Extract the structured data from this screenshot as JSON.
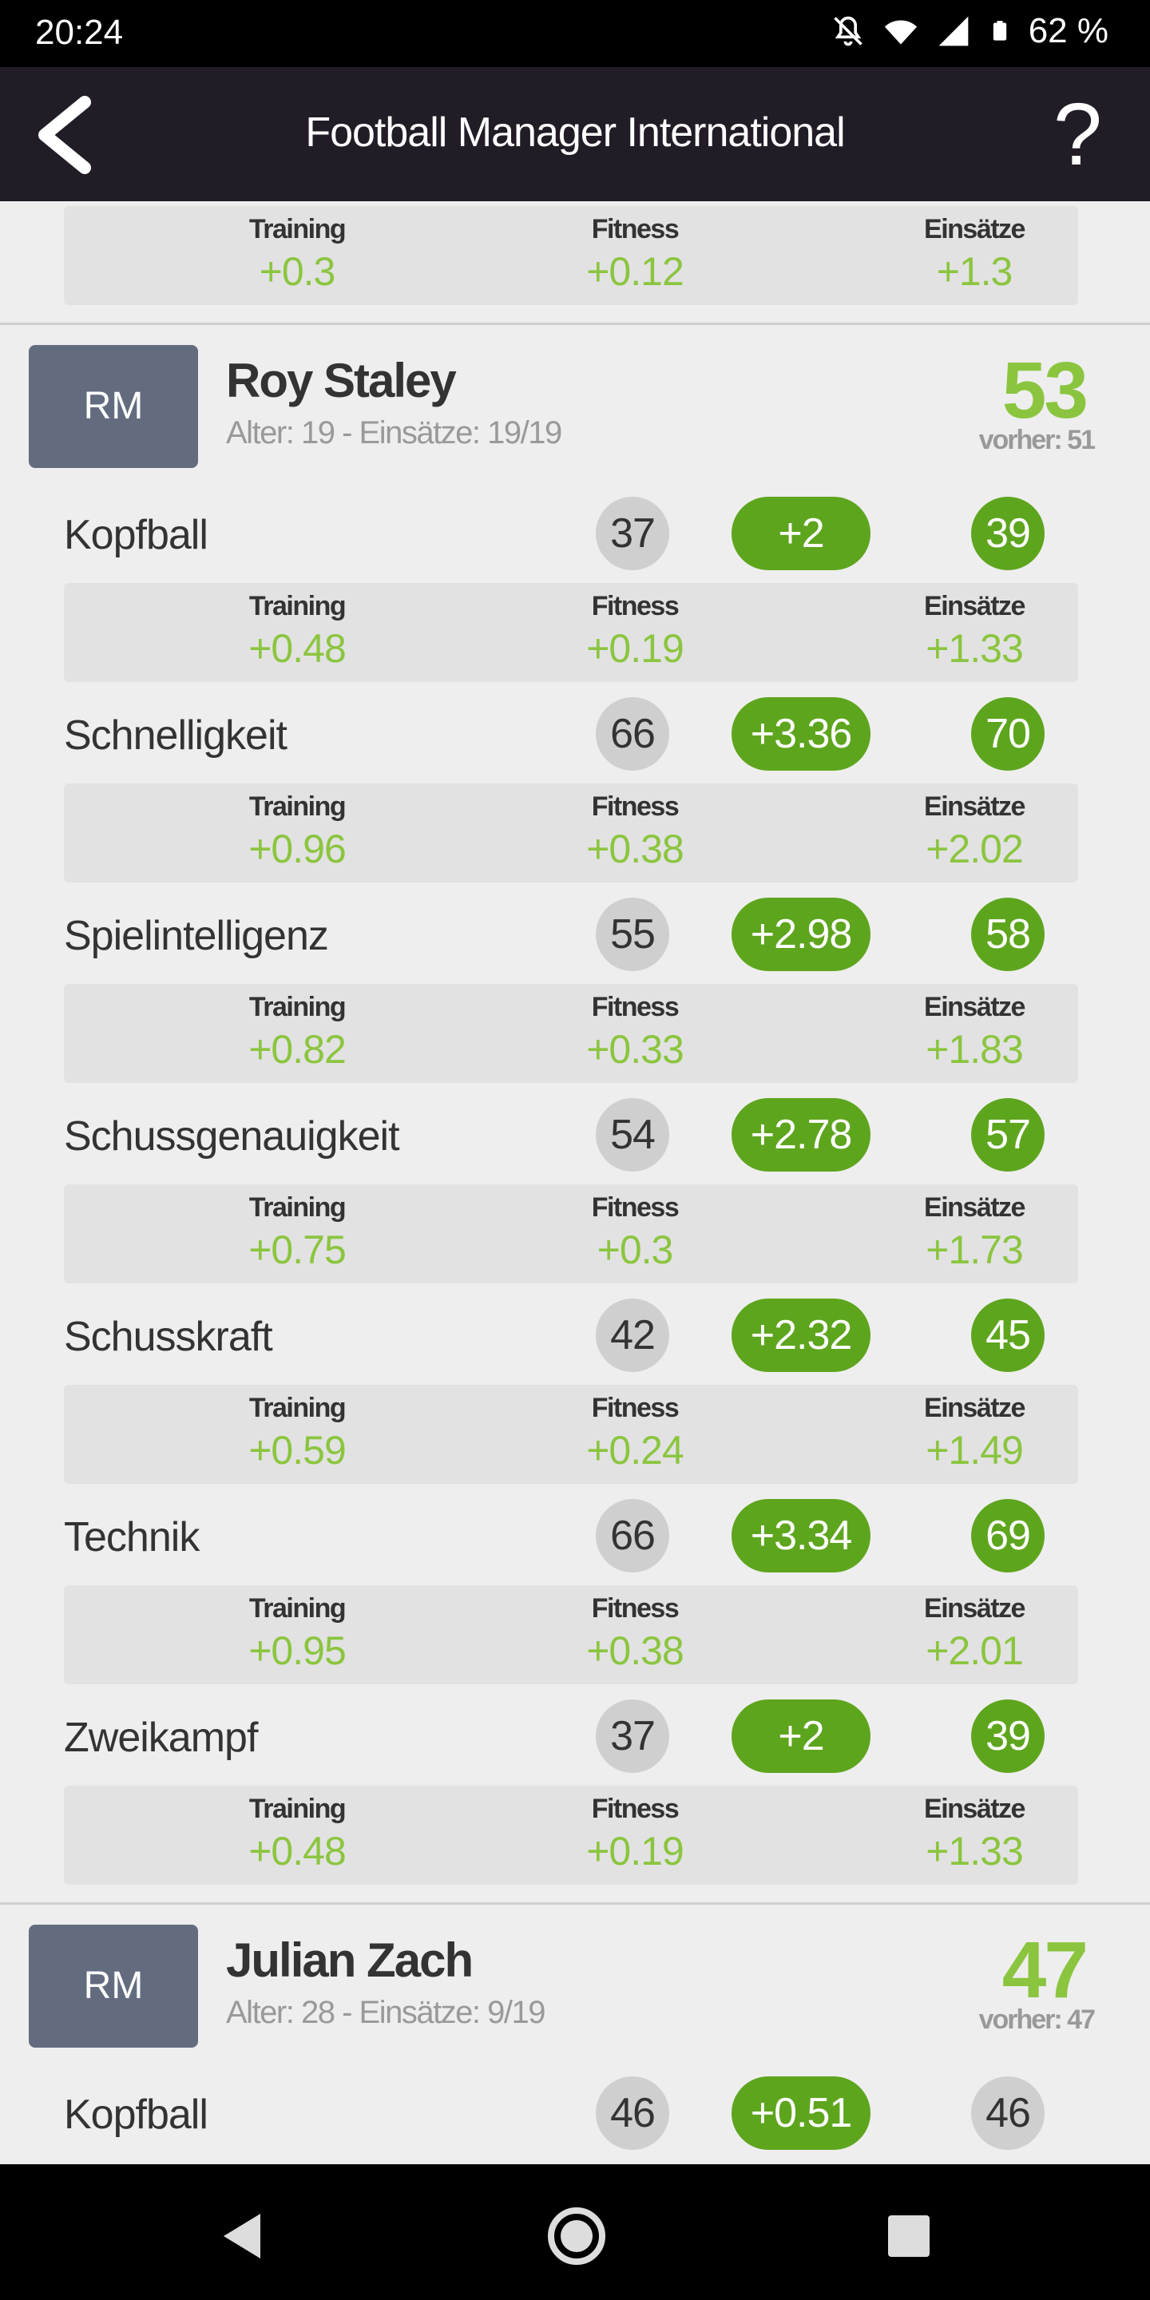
{
  "status_bar": {
    "time": "20:24",
    "battery": "62 %"
  },
  "app": {
    "title": "Football Manager International"
  },
  "labels": {
    "training": "Training",
    "fitness": "Fitness",
    "einsaetze": "Einsätze"
  },
  "prev_stats": {
    "training": "+0.3",
    "fitness": "+0.12",
    "einsaetze": "+1.3"
  },
  "players": [
    {
      "position": "RM",
      "name": "Roy Staley",
      "meta": "Alter: 19 - Einsätze: 19/19",
      "score": "53",
      "previous": "vorher: 51",
      "attributes": [
        {
          "name": "Kopfball",
          "old": "37",
          "delta": "+2",
          "new": "39",
          "training": "+0.48",
          "fitness": "+0.19",
          "einsaetze": "+1.33"
        },
        {
          "name": "Schnelligkeit",
          "old": "66",
          "delta": "+3.36",
          "new": "70",
          "training": "+0.96",
          "fitness": "+0.38",
          "einsaetze": "+2.02"
        },
        {
          "name": "Spielintelligenz",
          "old": "55",
          "delta": "+2.98",
          "new": "58",
          "training": "+0.82",
          "fitness": "+0.33",
          "einsaetze": "+1.83"
        },
        {
          "name": "Schussgenauigkeit",
          "old": "54",
          "delta": "+2.78",
          "new": "57",
          "training": "+0.75",
          "fitness": "+0.3",
          "einsaetze": "+1.73"
        },
        {
          "name": "Schusskraft",
          "old": "42",
          "delta": "+2.32",
          "new": "45",
          "training": "+0.59",
          "fitness": "+0.24",
          "einsaetze": "+1.49"
        },
        {
          "name": "Technik",
          "old": "66",
          "delta": "+3.34",
          "new": "69",
          "training": "+0.95",
          "fitness": "+0.38",
          "einsaetze": "+2.01"
        },
        {
          "name": "Zweikampf",
          "old": "37",
          "delta": "+2",
          "new": "39",
          "training": "+0.48",
          "fitness": "+0.19",
          "einsaetze": "+1.33"
        }
      ]
    },
    {
      "position": "RM",
      "name": "Julian Zach",
      "meta": "Alter: 28 - Einsätze: 9/19",
      "score": "47",
      "previous": "vorher: 47",
      "attributes": [
        {
          "name": "Kopfball",
          "old": "46",
          "delta": "+0.51",
          "new": "46"
        }
      ]
    }
  ],
  "colors": {
    "accent_green": "#5ea51e",
    "light_green": "#8bc53f",
    "header_bg": "#221c27",
    "badge_bg": "#636c7f"
  },
  "icons": [
    "back-arrow-icon",
    "help-icon",
    "mute-icon",
    "wifi-icon",
    "signal-icon",
    "battery-icon",
    "nav-back-icon",
    "nav-home-icon",
    "nav-recents-icon"
  ]
}
